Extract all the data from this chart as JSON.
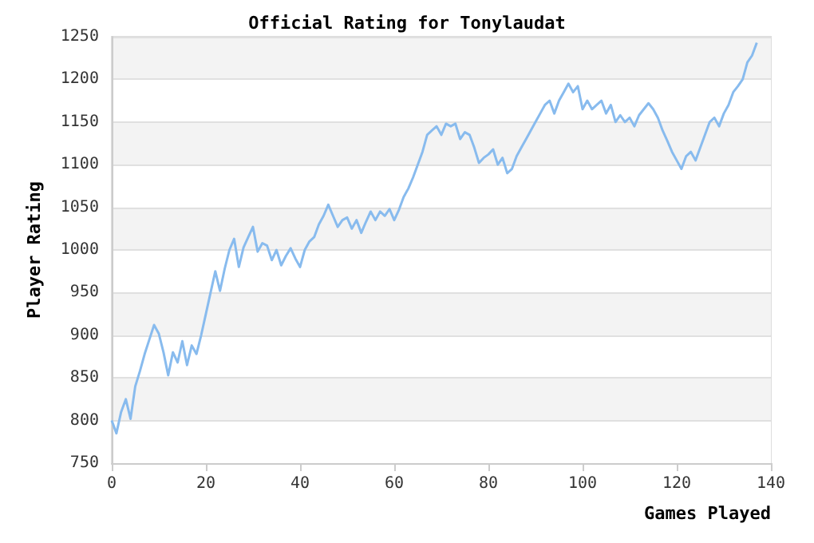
{
  "chart_data": {
    "type": "line",
    "title": "Official Rating for Tonylaudat",
    "xlabel": "Games Played",
    "ylabel": "Player Rating",
    "x": [
      0,
      1,
      2,
      3,
      4,
      5,
      6,
      7,
      8,
      9,
      10,
      11,
      12,
      13,
      14,
      15,
      16,
      17,
      18,
      19,
      20,
      21,
      22,
      23,
      24,
      25,
      26,
      27,
      28,
      29,
      30,
      31,
      32,
      33,
      34,
      35,
      36,
      37,
      38,
      39,
      40,
      41,
      42,
      43,
      44,
      45,
      46,
      47,
      48,
      49,
      50,
      51,
      52,
      53,
      54,
      55,
      56,
      57,
      58,
      59,
      60,
      61,
      62,
      63,
      64,
      65,
      66,
      67,
      68,
      69,
      70,
      71,
      72,
      73,
      74,
      75,
      76,
      77,
      78,
      79,
      80,
      81,
      82,
      83,
      84,
      85,
      86,
      87,
      88,
      89,
      90,
      91,
      92,
      93,
      94,
      95,
      96,
      97,
      98,
      99,
      100,
      101,
      102,
      103,
      104,
      105,
      106,
      107,
      108,
      109,
      110,
      111,
      112,
      113,
      114,
      115,
      116,
      117,
      118,
      119,
      120,
      121,
      122,
      123,
      124,
      125,
      126,
      127,
      128,
      129,
      130,
      131,
      132,
      133,
      134,
      135,
      136,
      137
    ],
    "series": [
      {
        "color": "#88bbee",
        "values": [
          800,
          785,
          810,
          825,
          802,
          840,
          858,
          878,
          895,
          912,
          902,
          880,
          853,
          880,
          868,
          893,
          865,
          888,
          878,
          900,
          925,
          950,
          975,
          952,
          978,
          1000,
          1013,
          980,
          1003,
          1015,
          1027,
          998,
          1008,
          1005,
          988,
          1000,
          982,
          993,
          1002,
          990,
          980,
          1000,
          1010,
          1015,
          1030,
          1040,
          1053,
          1040,
          1027,
          1035,
          1038,
          1025,
          1035,
          1020,
          1033,
          1045,
          1035,
          1045,
          1040,
          1048,
          1035,
          1047,
          1062,
          1072,
          1085,
          1100,
          1115,
          1135,
          1140,
          1145,
          1135,
          1148,
          1145,
          1148,
          1130,
          1138,
          1135,
          1120,
          1102,
          1108,
          1112,
          1118,
          1100,
          1108,
          1090,
          1095,
          1110,
          1120,
          1130,
          1140,
          1150,
          1160,
          1170,
          1175,
          1160,
          1175,
          1185,
          1195,
          1185,
          1192,
          1165,
          1175,
          1165,
          1170,
          1175,
          1160,
          1170,
          1150,
          1158,
          1150,
          1155,
          1145,
          1158,
          1165,
          1172,
          1165,
          1155,
          1140,
          1128,
          1115,
          1105,
          1095,
          1110,
          1115,
          1105,
          1120,
          1135,
          1150,
          1155,
          1145,
          1160,
          1170,
          1185,
          1192,
          1200,
          1220,
          1228,
          1243
        ]
      }
    ],
    "xlim": [
      0,
      140
    ],
    "xticks": [
      0,
      20,
      40,
      60,
      80,
      100,
      120,
      140
    ],
    "ylim": [
      750,
      1250
    ],
    "yticks": [
      750,
      800,
      850,
      900,
      950,
      1000,
      1050,
      1100,
      1150,
      1200,
      1250
    ],
    "grid": "y",
    "marker": "none",
    "line_style": "solid"
  }
}
